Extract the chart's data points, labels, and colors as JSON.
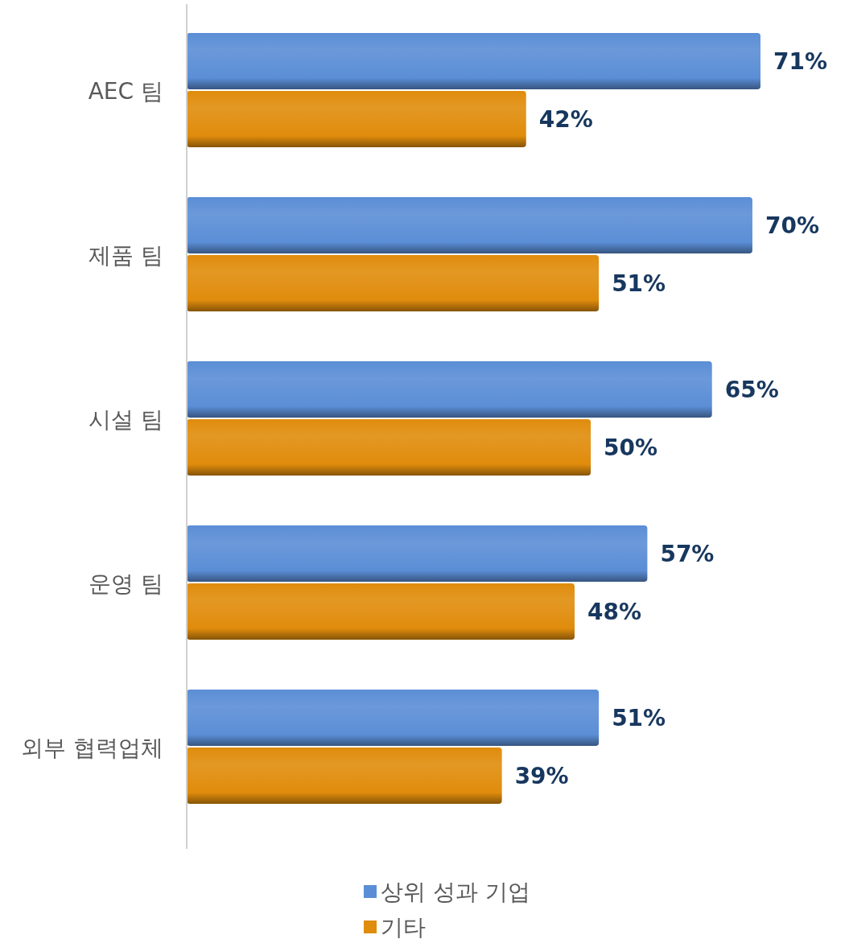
{
  "chart_data": {
    "type": "bar",
    "orientation": "horizontal",
    "categories": [
      "AEC 팀",
      "제품 팀",
      "시설 팀",
      "운영 팀",
      "외부 협력업체"
    ],
    "series": [
      {
        "name": "상위 성과 기업",
        "color": "#5b8ed6",
        "values": [
          71,
          70,
          65,
          57,
          51
        ],
        "value_labels": [
          "71%",
          "70%",
          "65%",
          "57%",
          "51%"
        ]
      },
      {
        "name": "기타",
        "color": "#e08c0c",
        "values": [
          42,
          51,
          50,
          48,
          39
        ],
        "value_labels": [
          "42%",
          "51%",
          "50%",
          "48%",
          "39%"
        ]
      }
    ],
    "legend": "bottom"
  }
}
